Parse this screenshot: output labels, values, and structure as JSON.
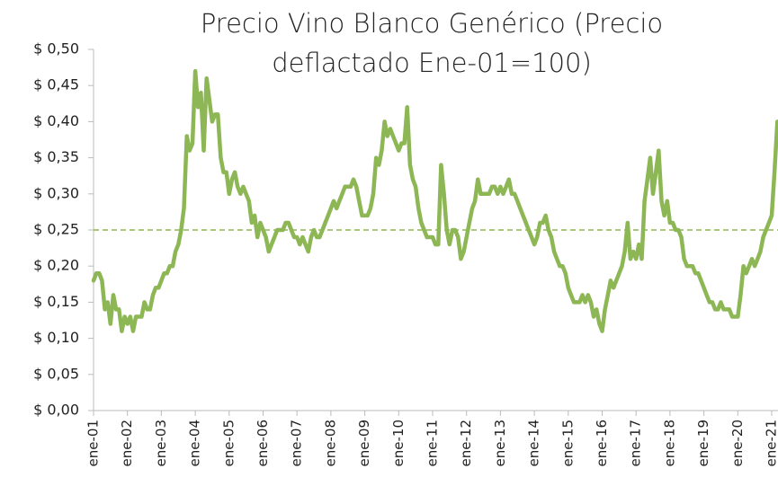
{
  "chart_data": {
    "type": "line",
    "title": [
      "Precio Vino Blanco Genérico (Precio",
      "deflactado Ene-01=100)"
    ],
    "categories": [
      "ene-01",
      null,
      null,
      null,
      null,
      null,
      null,
      null,
      null,
      null,
      null,
      null,
      "ene-02",
      null,
      null,
      null,
      null,
      null,
      null,
      null,
      null,
      null,
      null,
      null,
      "ene-03",
      null,
      null,
      null,
      null,
      null,
      null,
      null,
      null,
      null,
      null,
      null,
      "ene-04",
      null,
      null,
      null,
      null,
      null,
      null,
      null,
      null,
      null,
      null,
      null,
      "ene-05",
      null,
      null,
      null,
      null,
      null,
      null,
      null,
      null,
      null,
      null,
      null,
      "ene-06",
      null,
      null,
      null,
      null,
      null,
      null,
      null,
      null,
      null,
      null,
      null,
      "ene-07",
      null,
      null,
      null,
      null,
      null,
      null,
      null,
      null,
      null,
      null,
      null,
      "ene-08",
      null,
      null,
      null,
      null,
      null,
      null,
      null,
      null,
      null,
      null,
      null,
      "ene-09",
      null,
      null,
      null,
      null,
      null,
      null,
      null,
      null,
      null,
      null,
      null,
      "ene-10",
      null,
      null,
      null,
      null,
      null,
      null,
      null,
      null,
      null,
      null,
      null,
      "ene-11",
      null,
      null,
      null,
      null,
      null,
      null,
      null,
      null,
      null,
      null,
      null,
      "ene-12",
      null,
      null,
      null,
      null,
      null,
      null,
      null,
      null,
      null,
      null,
      null,
      "ene-13",
      null,
      null,
      null,
      null,
      null,
      null,
      null,
      null,
      null,
      null,
      null,
      "ene-14",
      null,
      null,
      null,
      null,
      null,
      null,
      null,
      null,
      null,
      null,
      null,
      "ene-15",
      null,
      null,
      null,
      null,
      null,
      null,
      null,
      null,
      null,
      null,
      null,
      "ene-16",
      null,
      null,
      null,
      null,
      null,
      null,
      null,
      null,
      null,
      null,
      null,
      "ene-17",
      null,
      null,
      null,
      null,
      null,
      null,
      null,
      null,
      null,
      null,
      null,
      "ene-18",
      null,
      null,
      null,
      null,
      null,
      null,
      null,
      null,
      null,
      null,
      null,
      "ene-19",
      null,
      null,
      null,
      null,
      null,
      null,
      null,
      null,
      null,
      null,
      null,
      "ene-20",
      null,
      null,
      null,
      null,
      null,
      null,
      null,
      null,
      null,
      null,
      null,
      "ene-21",
      null,
      null
    ],
    "values": [
      0.18,
      0.19,
      0.19,
      0.18,
      0.14,
      0.15,
      0.12,
      0.16,
      0.14,
      0.14,
      0.11,
      0.13,
      0.12,
      0.13,
      0.11,
      0.13,
      0.13,
      0.13,
      0.15,
      0.14,
      0.14,
      0.16,
      0.17,
      0.17,
      0.18,
      0.19,
      0.19,
      0.2,
      0.2,
      0.22,
      0.23,
      0.25,
      0.28,
      0.38,
      0.36,
      0.37,
      0.47,
      0.42,
      0.44,
      0.36,
      0.46,
      0.43,
      0.4,
      0.41,
      0.41,
      0.35,
      0.33,
      0.33,
      0.3,
      0.32,
      0.33,
      0.31,
      0.3,
      0.31,
      0.3,
      0.29,
      0.26,
      0.27,
      0.24,
      0.26,
      0.25,
      0.24,
      0.22,
      0.23,
      0.24,
      0.25,
      0.25,
      0.25,
      0.26,
      0.26,
      0.25,
      0.24,
      0.24,
      0.23,
      0.24,
      0.23,
      0.22,
      0.24,
      0.25,
      0.24,
      0.24,
      0.25,
      0.26,
      0.27,
      0.28,
      0.29,
      0.28,
      0.29,
      0.3,
      0.31,
      0.31,
      0.31,
      0.32,
      0.31,
      0.29,
      0.27,
      0.27,
      0.27,
      0.28,
      0.3,
      0.35,
      0.34,
      0.36,
      0.4,
      0.38,
      0.39,
      0.38,
      0.37,
      0.36,
      0.37,
      0.37,
      0.42,
      0.34,
      0.32,
      0.31,
      0.28,
      0.26,
      0.25,
      0.24,
      0.24,
      0.24,
      0.23,
      0.23,
      0.34,
      0.3,
      0.25,
      0.23,
      0.25,
      0.25,
      0.24,
      0.21,
      0.22,
      0.24,
      0.26,
      0.28,
      0.29,
      0.32,
      0.3,
      0.3,
      0.3,
      0.3,
      0.31,
      0.31,
      0.3,
      0.31,
      0.3,
      0.31,
      0.32,
      0.3,
      0.3,
      0.29,
      0.28,
      0.27,
      0.26,
      0.25,
      0.24,
      0.23,
      0.24,
      0.26,
      0.26,
      0.27,
      0.25,
      0.24,
      0.22,
      0.21,
      0.2,
      0.2,
      0.19,
      0.17,
      0.16,
      0.15,
      0.15,
      0.15,
      0.16,
      0.15,
      0.16,
      0.15,
      0.13,
      0.14,
      0.12,
      0.11,
      0.14,
      0.16,
      0.18,
      0.17,
      0.18,
      0.19,
      0.2,
      0.22,
      0.26,
      0.21,
      0.22,
      0.21,
      0.23,
      0.21,
      0.29,
      0.32,
      0.35,
      0.3,
      0.33,
      0.36,
      0.29,
      0.27,
      0.29,
      0.26,
      0.26,
      0.25,
      0.25,
      0.24,
      0.21,
      0.2,
      0.2,
      0.2,
      0.19,
      0.19,
      0.18,
      0.17,
      0.16,
      0.15,
      0.15,
      0.14,
      0.14,
      0.15,
      0.14,
      0.14,
      0.14,
      0.13,
      0.13,
      0.13,
      0.16,
      0.2,
      0.19,
      0.2,
      0.21,
      0.2,
      0.21,
      0.22,
      0.24,
      0.25,
      0.26,
      0.27,
      0.33,
      0.4
    ],
    "color": "#8db654",
    "reference_line": 0.25,
    "reference_color": "#8db654",
    "ylim": [
      0,
      0.5
    ],
    "yticks": [
      {
        "value": 0,
        "label": "$ 0,00"
      },
      {
        "value": 0.05,
        "label": "$ 0,05"
      },
      {
        "value": 0.1,
        "label": "$ 0,10"
      },
      {
        "value": 0.15,
        "label": "$ 0,15"
      },
      {
        "value": 0.2,
        "label": "$ 0,20"
      },
      {
        "value": 0.25,
        "label": "$ 0,25"
      },
      {
        "value": 0.3,
        "label": "$ 0,30"
      },
      {
        "value": 0.35,
        "label": "$ 0,35"
      },
      {
        "value": 0.4,
        "label": "$ 0,40"
      },
      {
        "value": 0.45,
        "label": "$ 0,45"
      },
      {
        "value": 0.5,
        "label": "$ 0,50"
      }
    ]
  }
}
